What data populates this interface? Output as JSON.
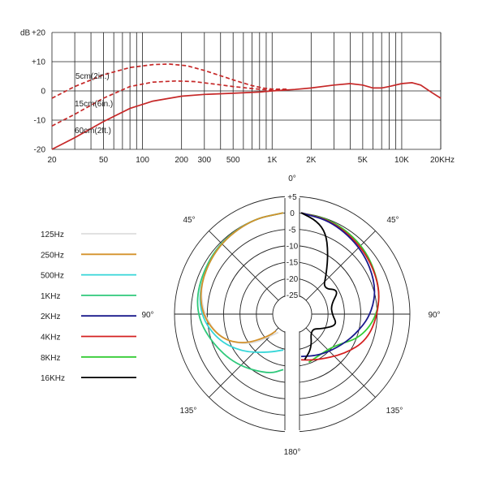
{
  "chart_data": [
    {
      "type": "line",
      "title": "",
      "ylabel": "dB",
      "xlabel": "",
      "xscale": "log",
      "xlim": [
        20,
        20000
      ],
      "ylim": [
        -20,
        20
      ],
      "grid": true,
      "y_ticks": [
        "-20",
        "-10",
        "0",
        "+10",
        "+20"
      ],
      "x_ticks": [
        {
          "v": 20,
          "label": "20"
        },
        {
          "v": 50,
          "label": "50"
        },
        {
          "v": 100,
          "label": "100"
        },
        {
          "v": 200,
          "label": "200"
        },
        {
          "v": 300,
          "label": "300"
        },
        {
          "v": 500,
          "label": "500"
        },
        {
          "v": 1000,
          "label": "1K"
        },
        {
          "v": 2000,
          "label": "2K"
        },
        {
          "v": 5000,
          "label": "5K"
        },
        {
          "v": 10000,
          "label": "10K"
        },
        {
          "v": 20000,
          "label": "20KHz"
        }
      ],
      "color": "#c62828",
      "series": [
        {
          "name": "5cm(2in.)",
          "style": "dashed",
          "points": [
            [
              20,
              -2.5
            ],
            [
              30,
              1.5
            ],
            [
              50,
              5.5
            ],
            [
              80,
              8
            ],
            [
              120,
              9
            ],
            [
              160,
              9.2
            ],
            [
              220,
              8.6
            ],
            [
              300,
              7
            ],
            [
              400,
              5.2
            ],
            [
              550,
              3.2
            ],
            [
              700,
              1.8
            ],
            [
              850,
              1
            ],
            [
              1000,
              0.6
            ],
            [
              1300,
              0.6
            ]
          ]
        },
        {
          "name": "15cm(6in.)",
          "style": "dashed",
          "points": [
            [
              20,
              -12
            ],
            [
              30,
              -8
            ],
            [
              50,
              -2.5
            ],
            [
              80,
              1.5
            ],
            [
              120,
              3
            ],
            [
              180,
              3.4
            ],
            [
              250,
              3.2
            ],
            [
              350,
              2.4
            ],
            [
              500,
              1.5
            ],
            [
              700,
              0.8
            ],
            [
              1000,
              0.2
            ],
            [
              1300,
              0.4
            ]
          ]
        },
        {
          "name": "60cm(2ft.)",
          "style": "solid",
          "points": [
            [
              20,
              -20
            ],
            [
              30,
              -16
            ],
            [
              50,
              -10.5
            ],
            [
              80,
              -6
            ],
            [
              120,
              -3.5
            ],
            [
              200,
              -1.8
            ],
            [
              300,
              -1.2
            ],
            [
              500,
              -0.8
            ],
            [
              800,
              -0.4
            ],
            [
              1000,
              0
            ],
            [
              1500,
              0.5
            ],
            [
              2000,
              1
            ],
            [
              3000,
              2
            ],
            [
              4000,
              2.5
            ],
            [
              5000,
              2
            ],
            [
              6000,
              1
            ],
            [
              7000,
              1
            ],
            [
              8000,
              1.5
            ],
            [
              10000,
              2.5
            ],
            [
              12000,
              2.8
            ],
            [
              14000,
              2
            ],
            [
              17000,
              -0.5
            ],
            [
              20000,
              -2.5
            ]
          ]
        }
      ]
    },
    {
      "type": "polar",
      "r_ticks": [
        "+5",
        "0",
        "-5",
        "-10",
        "-15",
        "-20",
        "-25"
      ],
      "angle_labels": {
        "a0": "0°",
        "a45L": "45°",
        "a45R": "45°",
        "a90L": "90°",
        "a90R": "90°",
        "a135L": "135°",
        "a135R": "135°",
        "a180": "180°"
      },
      "legend": [
        {
          "name": "125Hz",
          "color": "#dddddd"
        },
        {
          "name": "250Hz",
          "color": "#d4912a"
        },
        {
          "name": "500Hz",
          "color": "#36d6d8"
        },
        {
          "name": "1KHz",
          "color": "#2ec87a"
        },
        {
          "name": "2KHz",
          "color": "#1a1a8c"
        },
        {
          "name": "4KHz",
          "color": "#d42020"
        },
        {
          "name": "8KHz",
          "color": "#33cc33"
        },
        {
          "name": "16KHz",
          "color": "#000000"
        }
      ],
      "left_curves": [
        {
          "name": "125Hz",
          "color": "#dddddd",
          "points": [
            [
              0,
              0
            ],
            [
              20,
              -0.3
            ],
            [
              45,
              -1
            ],
            [
              70,
              -2.5
            ],
            [
              90,
              -5
            ],
            [
              110,
              -9
            ],
            [
              130,
              -16
            ],
            [
              160,
              -25
            ]
          ]
        },
        {
          "name": "1KHz",
          "color": "#2ec87a",
          "points": [
            [
              0,
              0
            ],
            [
              20,
              -0.3
            ],
            [
              45,
              -1
            ],
            [
              70,
              -2
            ],
            [
              90,
              -3
            ],
            [
              110,
              -6
            ],
            [
              135,
              -9
            ],
            [
              165,
              -12
            ],
            [
              180,
              -14
            ]
          ]
        },
        {
          "name": "500Hz",
          "color": "#36d6d8",
          "points": [
            [
              0,
              0
            ],
            [
              20,
              -0.3
            ],
            [
              45,
              -1.2
            ],
            [
              70,
              -2.5
            ],
            [
              90,
              -4
            ],
            [
              110,
              -8
            ],
            [
              130,
              -13
            ],
            [
              155,
              -18
            ],
            [
              180,
              -20
            ]
          ]
        },
        {
          "name": "250Hz",
          "color": "#d4912a",
          "points": [
            [
              0,
              0
            ],
            [
              20,
              -0.3
            ],
            [
              45,
              -1.2
            ],
            [
              70,
              -2.5
            ],
            [
              90,
              -4.5
            ],
            [
              110,
              -9
            ],
            [
              125,
              -15
            ],
            [
              140,
              -22
            ],
            [
              150,
              -25
            ]
          ]
        }
      ],
      "right_curves": [
        {
          "name": "8KHz",
          "color": "#33cc33",
          "points": [
            [
              0,
              0
            ],
            [
              20,
              -0.5
            ],
            [
              45,
              -2
            ],
            [
              70,
              -4
            ],
            [
              90,
              -6
            ],
            [
              110,
              -10
            ],
            [
              130,
              -16
            ],
            [
              150,
              -17
            ],
            [
              170,
              -16
            ]
          ]
        },
        {
          "name": "4KHz",
          "color": "#d42020",
          "points": [
            [
              0,
              0
            ],
            [
              20,
              -0.8
            ],
            [
              45,
              -2.5
            ],
            [
              70,
              -4
            ],
            [
              90,
              -6
            ],
            [
              110,
              -8
            ],
            [
              130,
              -12
            ],
            [
              160,
              -16
            ],
            [
              180,
              -17
            ]
          ]
        },
        {
          "name": "2KHz",
          "color": "#1a1a8c",
          "points": [
            [
              0,
              0
            ],
            [
              20,
              -1
            ],
            [
              45,
              -3
            ],
            [
              70,
              -5
            ],
            [
              90,
              -8
            ],
            [
              110,
              -12
            ],
            [
              130,
              -15
            ],
            [
              155,
              -17
            ],
            [
              180,
              -18
            ]
          ]
        },
        {
          "name": "16KHz",
          "color": "#000000",
          "points": [
            [
              0,
              0
            ],
            [
              10,
              -2
            ],
            [
              18,
              -5
            ],
            [
              25,
              -10
            ],
            [
              35,
              -16
            ],
            [
              45,
              -20
            ],
            [
              60,
              -16
            ],
            [
              75,
              -20
            ],
            [
              90,
              -20
            ],
            [
              105,
              -18
            ],
            [
              120,
              -22
            ],
            [
              140,
              -25
            ],
            [
              160,
              -20
            ],
            [
              175,
              -17
            ]
          ]
        }
      ]
    }
  ]
}
